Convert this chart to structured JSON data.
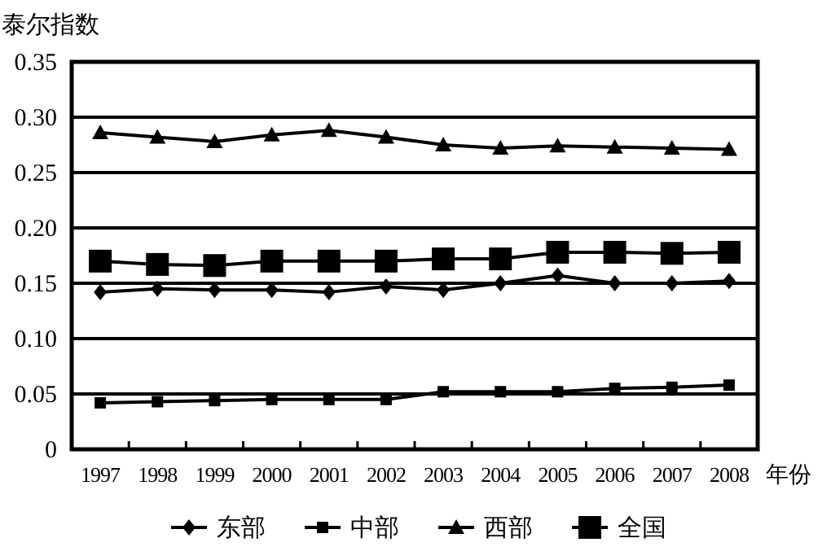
{
  "chart_data": {
    "type": "line",
    "ylabel": "泰尔指数",
    "xlabel": "年份",
    "categories": [
      "1997",
      "1998",
      "1999",
      "2000",
      "2001",
      "2002",
      "2003",
      "2004",
      "2005",
      "2006",
      "2007",
      "2008"
    ],
    "series": [
      {
        "name": "东部",
        "color": "#000000",
        "marker": "diamond",
        "values": [
          0.142,
          0.145,
          0.144,
          0.144,
          0.142,
          0.147,
          0.144,
          0.15,
          0.157,
          0.15,
          0.15,
          0.152
        ]
      },
      {
        "name": "中部",
        "color": "#000000",
        "marker": "square",
        "values": [
          0.042,
          0.043,
          0.044,
          0.045,
          0.045,
          0.045,
          0.052,
          0.052,
          0.052,
          0.055,
          0.056,
          0.058
        ]
      },
      {
        "name": "西部",
        "color": "#000000",
        "marker": "triangle",
        "values": [
          0.286,
          0.282,
          0.278,
          0.284,
          0.288,
          0.282,
          0.275,
          0.272,
          0.274,
          0.273,
          0.272,
          0.271
        ]
      },
      {
        "name": "全国",
        "color": "#000000",
        "marker": "square",
        "values": [
          0.17,
          0.167,
          0.166,
          0.17,
          0.17,
          0.17,
          0.172,
          0.172,
          0.178,
          0.178,
          0.177,
          0.178
        ]
      }
    ],
    "ylim": [
      0,
      0.35
    ],
    "yticks": [
      {
        "value": 0,
        "label": "0"
      },
      {
        "value": 0.05,
        "label": "0.05"
      },
      {
        "value": 0.1,
        "label": "0.10"
      },
      {
        "value": 0.15,
        "label": "0.15"
      },
      {
        "value": 0.2,
        "label": "0.20"
      },
      {
        "value": 0.25,
        "label": "0.25"
      },
      {
        "value": 0.3,
        "label": "0.30"
      },
      {
        "value": 0.35,
        "label": "0.35"
      }
    ],
    "grid": "y",
    "legend": "bottom",
    "line_style": "solid"
  }
}
